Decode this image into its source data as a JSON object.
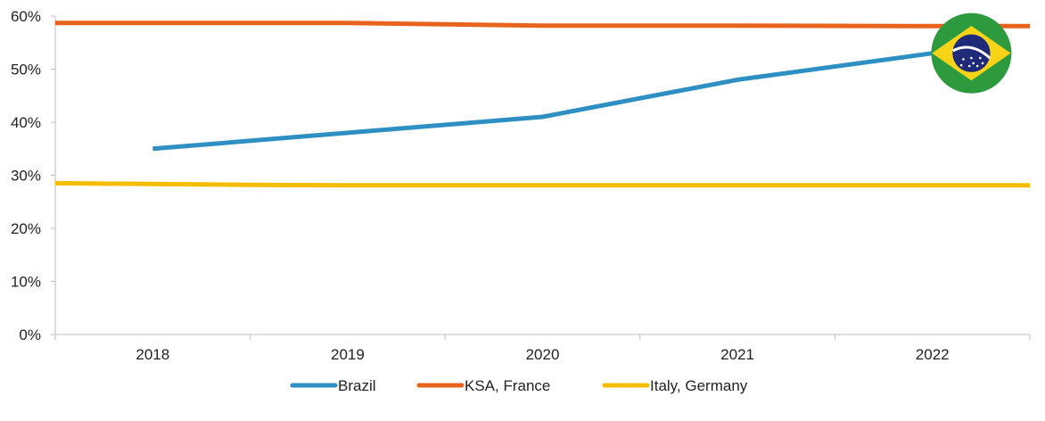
{
  "chart_data": {
    "type": "line",
    "title": "",
    "xlabel": "",
    "ylabel": "",
    "categories": [
      "2018",
      "2019",
      "2020",
      "2021",
      "2022"
    ],
    "ylim": [
      0,
      60
    ],
    "yticks": [
      0,
      10,
      20,
      30,
      40,
      50,
      60
    ],
    "ytick_labels": [
      "0%",
      "10%",
      "20%",
      "30%",
      "40%",
      "50%",
      "60%"
    ],
    "grid": false,
    "legend_position": "bottom",
    "series": [
      {
        "name": "Brazil",
        "color": "#2e8fc3",
        "points": [
          {
            "x": 2018.0,
            "y": 35
          },
          {
            "x": 2019.0,
            "y": 38
          },
          {
            "x": 2020.0,
            "y": 41
          },
          {
            "x": 2021.0,
            "y": 48
          },
          {
            "x": 2022.0,
            "y": 53
          }
        ]
      },
      {
        "name": "KSA, France",
        "color": "#e8641e",
        "points": [
          {
            "x": 2017.5,
            "y": 58.7
          },
          {
            "x": 2019.0,
            "y": 58.7
          },
          {
            "x": 2020.0,
            "y": 58.2
          },
          {
            "x": 2021.0,
            "y": 58.2
          },
          {
            "x": 2022.0,
            "y": 58.1
          },
          {
            "x": 2022.5,
            "y": 58.1
          }
        ]
      },
      {
        "name": "Italy, Germany",
        "color": "#f5bd00",
        "points": [
          {
            "x": 2017.5,
            "y": 28.5
          },
          {
            "x": 2018.5,
            "y": 28.2
          },
          {
            "x": 2019.0,
            "y": 28.1
          },
          {
            "x": 2020.0,
            "y": 28.1
          },
          {
            "x": 2021.0,
            "y": 28.1
          },
          {
            "x": 2022.0,
            "y": 28.1
          },
          {
            "x": 2022.5,
            "y": 28.1
          }
        ]
      }
    ],
    "annotations": [
      {
        "type": "flag",
        "country": "Brazil",
        "icon": "brazil-flag-icon",
        "x": 2022.2,
        "y": 53
      }
    ]
  }
}
